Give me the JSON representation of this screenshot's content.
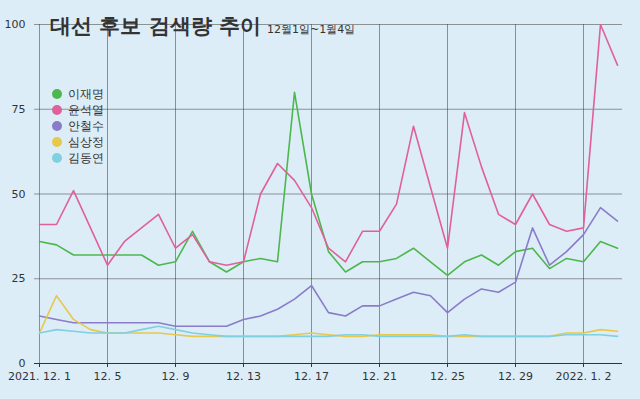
{
  "chart_data": {
    "type": "line",
    "title": "대선 후보 검색량 추이",
    "subtitle": "12월1일~1월4일",
    "categories": [
      "2021. 12. 1",
      null,
      null,
      null,
      "12. 5",
      null,
      null,
      null,
      "12. 9",
      null,
      null,
      null,
      "12. 13",
      null,
      null,
      null,
      "12. 17",
      null,
      null,
      null,
      "12. 21",
      null,
      null,
      null,
      "12. 25",
      null,
      null,
      null,
      "12. 29",
      null,
      null,
      null,
      "2022. 1. 2",
      null,
      null
    ],
    "series": [
      {
        "name": "이재명",
        "color": "#4cb84c",
        "values": [
          36,
          35,
          32,
          32,
          32,
          32,
          32,
          29,
          30,
          39,
          30,
          27,
          30,
          31,
          30,
          80,
          50,
          33,
          27,
          30,
          30,
          31,
          34,
          30,
          26,
          30,
          32,
          29,
          33,
          34,
          28,
          31,
          30,
          36,
          34
        ]
      },
      {
        "name": "윤석열",
        "color": "#e0609a",
        "values": [
          41,
          41,
          51,
          40,
          29,
          36,
          40,
          44,
          34,
          38,
          30,
          29,
          30,
          50,
          59,
          54,
          46,
          34,
          30,
          39,
          39,
          47,
          70,
          52,
          34,
          74,
          58,
          44,
          41,
          50,
          41,
          39,
          40,
          100,
          88
        ]
      },
      {
        "name": "안철수",
        "color": "#8a7cc8",
        "values": [
          14,
          13,
          12,
          12,
          12,
          12,
          12,
          12,
          11,
          11,
          11,
          11,
          13,
          14,
          16,
          19,
          23,
          15,
          14,
          17,
          17,
          19,
          21,
          20,
          15,
          19,
          22,
          21,
          24,
          40,
          29,
          33,
          38,
          46,
          42
        ]
      },
      {
        "name": "심상정",
        "color": "#e8c84a",
        "values": [
          9,
          20,
          13,
          10,
          9,
          9,
          9,
          9,
          8.5,
          8,
          8,
          8,
          8,
          8,
          8,
          8.5,
          9,
          8.5,
          8,
          8,
          8.5,
          8.5,
          8.5,
          8.5,
          8,
          8,
          8,
          8,
          8,
          8,
          8,
          9,
          9,
          10,
          9.5
        ]
      },
      {
        "name": "김동연",
        "color": "#7fd0e0",
        "values": [
          9,
          10,
          9.5,
          9,
          9,
          9,
          10,
          11,
          10,
          9,
          8.5,
          8,
          8,
          8,
          8,
          8,
          8,
          8,
          8.5,
          8.5,
          8,
          8,
          8,
          8,
          8,
          8.5,
          8,
          8,
          8,
          8,
          8,
          8.5,
          8.5,
          8.5,
          8
        ]
      }
    ],
    "ylim": [
      0,
      100
    ],
    "yticks": [
      0,
      25,
      50,
      75,
      100
    ],
    "grid": true
  }
}
